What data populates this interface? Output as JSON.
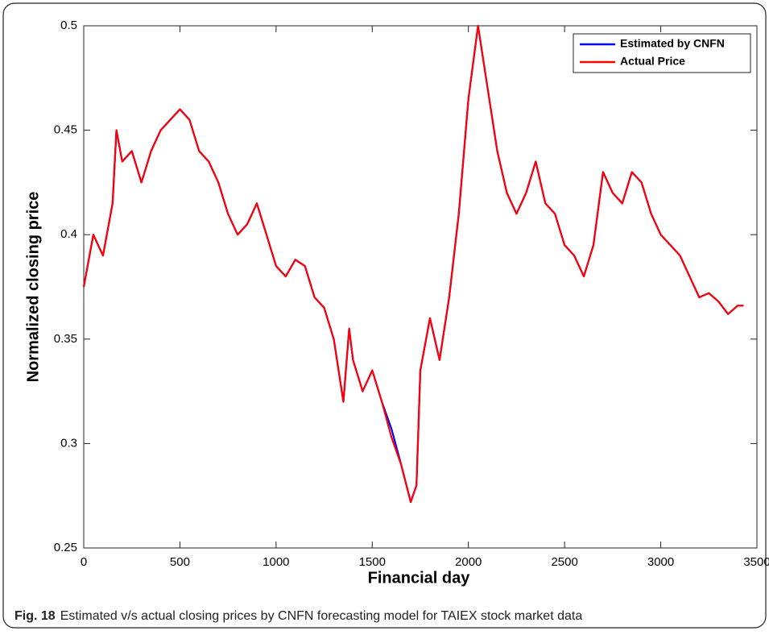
{
  "chart_data": {
    "type": "line",
    "xlabel": "Financial day",
    "ylabel": "Normalized closing price",
    "caption_label": "Fig. 18",
    "caption": "Estimated v/s actual closing prices by CNFN forecasting model for TAIEX stock market data",
    "legend": "upper right",
    "x": [
      0,
      50,
      100,
      150,
      170,
      200,
      250,
      300,
      350,
      400,
      450,
      500,
      550,
      600,
      650,
      700,
      750,
      800,
      850,
      900,
      950,
      1000,
      1050,
      1100,
      1150,
      1200,
      1250,
      1300,
      1350,
      1380,
      1400,
      1450,
      1500,
      1550,
      1600,
      1650,
      1700,
      1730,
      1750,
      1800,
      1850,
      1900,
      1950,
      2000,
      2050,
      2100,
      2150,
      2200,
      2250,
      2300,
      2350,
      2400,
      2450,
      2500,
      2550,
      2600,
      2650,
      2700,
      2750,
      2800,
      2850,
      2900,
      2950,
      3000,
      3050,
      3100,
      3150,
      3200,
      3250,
      3300,
      3350,
      3400,
      3430
    ],
    "series": [
      {
        "name": "Estimated by CNFN",
        "color": "#0000ff",
        "values": [
          0.375,
          0.4,
          0.39,
          0.415,
          0.45,
          0.435,
          0.44,
          0.425,
          0.44,
          0.45,
          0.455,
          0.46,
          0.455,
          0.44,
          0.435,
          0.425,
          0.41,
          0.4,
          0.405,
          0.415,
          0.4,
          0.385,
          0.38,
          0.388,
          0.385,
          0.37,
          0.365,
          0.35,
          0.32,
          0.355,
          0.34,
          0.325,
          0.335,
          0.32,
          0.307,
          0.29,
          0.272,
          0.28,
          0.335,
          0.36,
          0.34,
          0.37,
          0.41,
          0.465,
          0.5,
          0.47,
          0.44,
          0.42,
          0.41,
          0.42,
          0.435,
          0.415,
          0.41,
          0.395,
          0.39,
          0.38,
          0.395,
          0.43,
          0.42,
          0.415,
          0.43,
          0.425,
          0.41,
          0.4,
          0.395,
          0.39,
          0.38,
          0.37,
          0.372,
          0.368,
          0.362,
          0.366,
          0.366
        ]
      },
      {
        "name": "Actual Price",
        "color": "#ff0000",
        "values": [
          0.375,
          0.4,
          0.39,
          0.415,
          0.45,
          0.435,
          0.44,
          0.425,
          0.44,
          0.45,
          0.455,
          0.46,
          0.455,
          0.44,
          0.435,
          0.425,
          0.41,
          0.4,
          0.405,
          0.415,
          0.4,
          0.385,
          0.38,
          0.388,
          0.385,
          0.37,
          0.365,
          0.35,
          0.32,
          0.355,
          0.34,
          0.325,
          0.335,
          0.32,
          0.303,
          0.29,
          0.272,
          0.28,
          0.335,
          0.36,
          0.34,
          0.37,
          0.41,
          0.465,
          0.5,
          0.47,
          0.44,
          0.42,
          0.41,
          0.42,
          0.435,
          0.415,
          0.41,
          0.395,
          0.39,
          0.38,
          0.395,
          0.43,
          0.42,
          0.415,
          0.43,
          0.425,
          0.41,
          0.4,
          0.395,
          0.39,
          0.38,
          0.37,
          0.372,
          0.368,
          0.362,
          0.366,
          0.366
        ]
      }
    ],
    "xlim": [
      0,
      3500
    ],
    "xticks": [
      0,
      500,
      1000,
      1500,
      2000,
      2500,
      3000,
      3500
    ],
    "ylim": [
      0.25,
      0.5
    ],
    "yticks": [
      0.25,
      0.3,
      0.35,
      0.4,
      0.45,
      0.5
    ]
  }
}
